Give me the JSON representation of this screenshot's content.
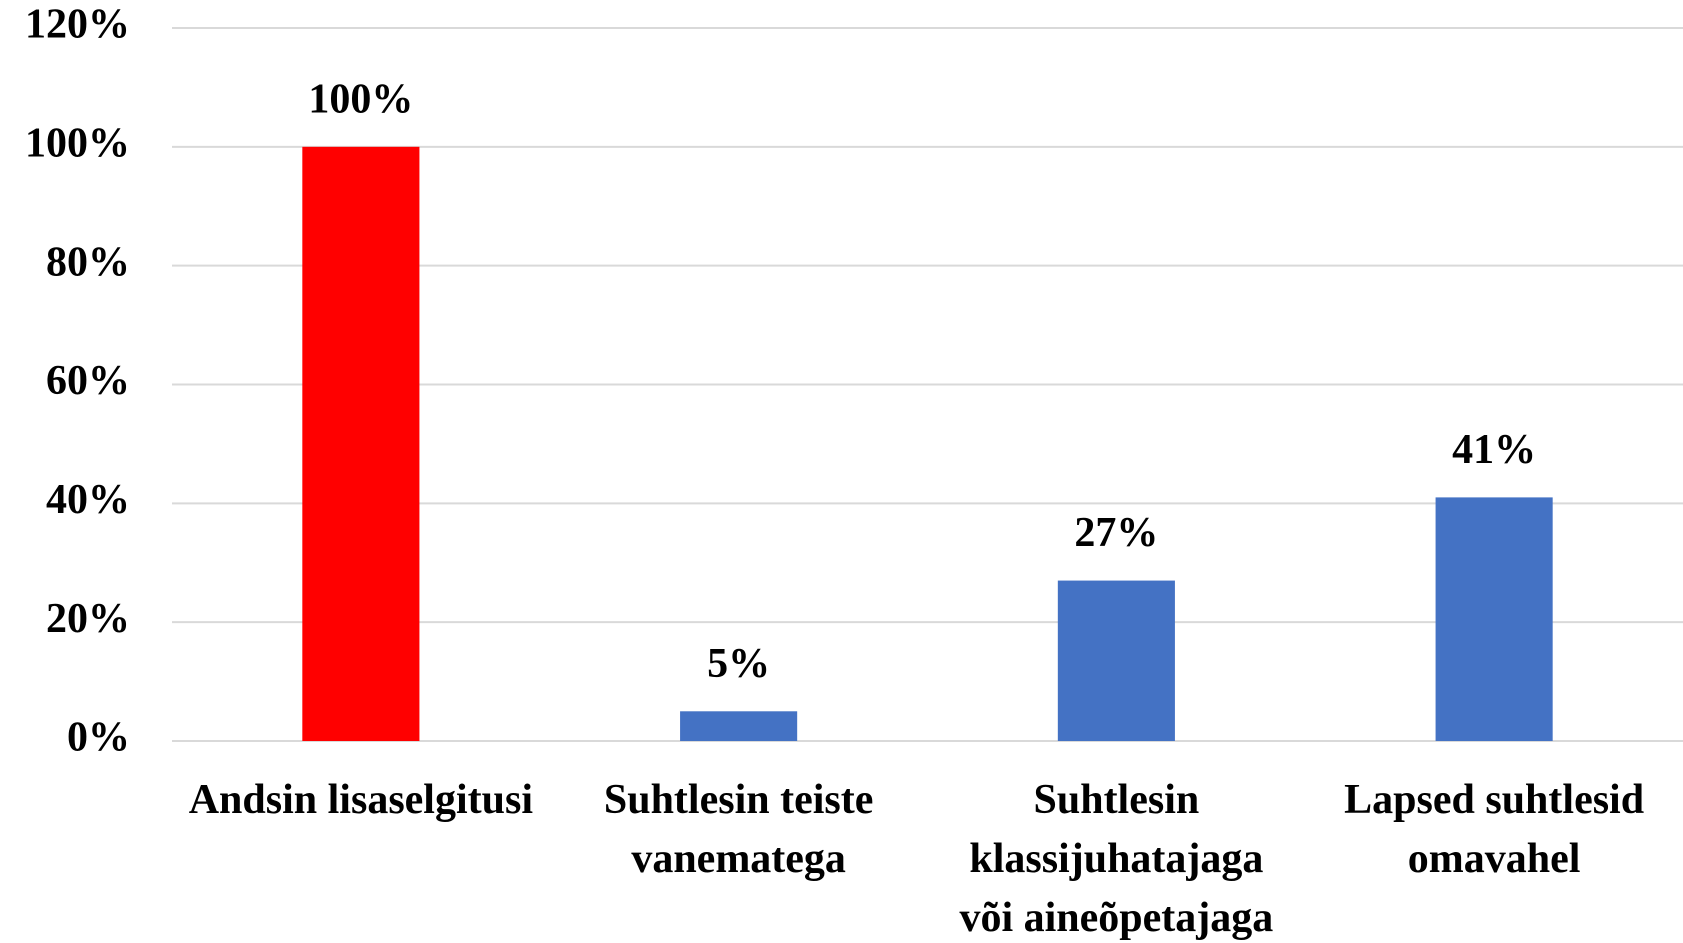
{
  "chart_data": {
    "type": "bar",
    "categories": [
      "Andsin lisaselgitusi",
      "Suhtlesin teiste vanematega",
      "Suhtlesin klassijuhatajaga või aineõpetajaga",
      "Lapsed suhtlesid omavahel"
    ],
    "values": [
      100,
      5,
      27,
      41
    ],
    "value_labels": [
      "100%",
      "5%",
      "27%",
      "41%"
    ],
    "colors": [
      "#ff0000",
      "#4472c4",
      "#4472c4",
      "#4472c4"
    ],
    "ylim": [
      0,
      120
    ],
    "yticks": [
      {
        "value": 0,
        "label": "0%"
      },
      {
        "value": 20,
        "label": "20%"
      },
      {
        "value": 40,
        "label": "40%"
      },
      {
        "value": 60,
        "label": "60%"
      },
      {
        "value": 80,
        "label": "80%"
      },
      {
        "value": 100,
        "label": "100%"
      },
      {
        "value": 120,
        "label": "120%"
      }
    ],
    "grid": true
  }
}
